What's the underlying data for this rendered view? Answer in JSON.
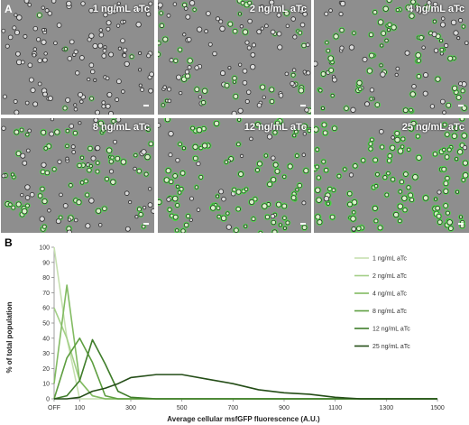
{
  "panel_a": {
    "letter": "A",
    "cells": [
      {
        "label": "1 ng/mL aTc",
        "intensity": 0.05
      },
      {
        "label": "2 ng/mL aTc",
        "intensity": 0.35
      },
      {
        "label": "4 ng/mL aTc",
        "intensity": 0.55
      },
      {
        "label": "8 ng/mL aTc",
        "intensity": 0.6
      },
      {
        "label": "12 ng/mL aTc",
        "intensity": 0.85
      },
      {
        "label": "25 ng/mL aTc",
        "intensity": 0.95
      }
    ],
    "fluorescence_color": "#44e040"
  },
  "panel_b": {
    "letter": "B"
  },
  "chart_data": {
    "type": "line",
    "xlabel": "Average cellular msfGFP fluorescence (A.U.)",
    "ylabel": "% of total population",
    "x": [
      "OFF",
      50,
      100,
      150,
      200,
      250,
      300,
      400,
      500,
      600,
      700,
      800,
      900,
      1000,
      1100,
      1200,
      1300,
      1400,
      1500
    ],
    "xticks": [
      "OFF",
      "100",
      "300",
      "500",
      "700",
      "900",
      "1100",
      "1300",
      "1500"
    ],
    "yticks": [
      0,
      10,
      20,
      30,
      40,
      50,
      60,
      70,
      80,
      90,
      100
    ],
    "ylim": [
      0,
      100
    ],
    "legend_position": "right",
    "series": [
      {
        "name": "1 ng/mL aTc",
        "color": "#c6e0b0",
        "values": [
          100,
          40,
          0,
          0,
          0,
          0,
          0,
          0,
          0,
          0,
          0,
          0,
          0,
          0,
          0,
          0,
          0,
          0,
          0
        ]
      },
      {
        "name": "2 ng/mL aTc",
        "color": "#a3cf87",
        "values": [
          60,
          40,
          12,
          2,
          0,
          0,
          0,
          0,
          0,
          0,
          0,
          0,
          0,
          0,
          0,
          0,
          0,
          0,
          0
        ]
      },
      {
        "name": "4 ng/mL aTc",
        "color": "#82bb62",
        "values": [
          10,
          75,
          12,
          2,
          0,
          0,
          0,
          0,
          0,
          0,
          0,
          0,
          0,
          0,
          0,
          0,
          0,
          0,
          0
        ]
      },
      {
        "name": "8 ng/mL aTc",
        "color": "#5e9e40",
        "values": [
          0,
          27,
          40,
          24,
          2,
          0,
          0,
          0,
          0,
          0,
          0,
          0,
          0,
          0,
          0,
          0,
          0,
          0,
          0
        ]
      },
      {
        "name": "12 ng/mL aTc",
        "color": "#3f7d2a",
        "values": [
          0,
          2,
          12,
          39,
          23,
          5,
          1,
          0,
          0,
          0,
          0,
          0,
          0,
          0,
          0,
          0,
          0,
          0,
          0
        ]
      },
      {
        "name": "25 ng/mL aTc",
        "color": "#244d17",
        "values": [
          0,
          0,
          1,
          5,
          7,
          10,
          14,
          16,
          16,
          13,
          10,
          6,
          4,
          3,
          1,
          0,
          0,
          0,
          0
        ]
      }
    ]
  }
}
